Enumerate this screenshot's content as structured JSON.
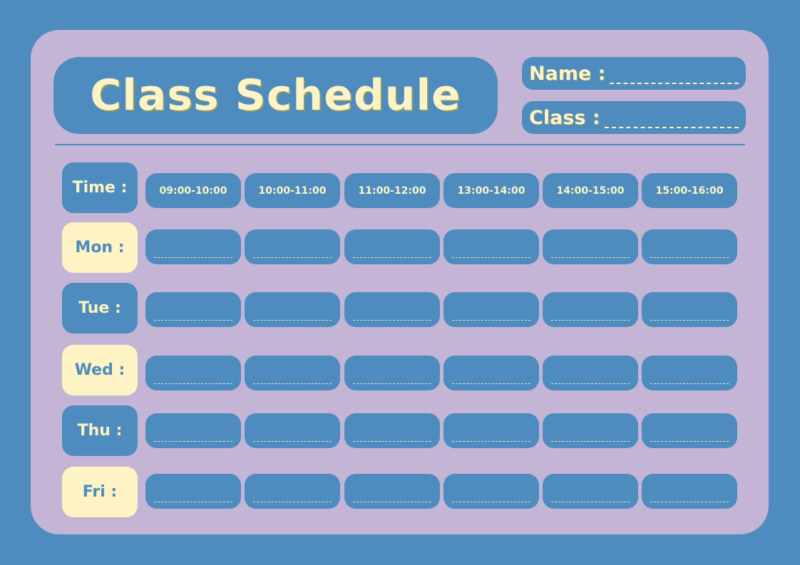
{
  "title": "Class Schedule",
  "fields": {
    "name_label": "Name :",
    "class_label": "Class :"
  },
  "time_label": "Time :",
  "time_slots": [
    "09:00-10:00",
    "10:00-11:00",
    "11:00-12:00",
    "13:00-14:00",
    "14:00-15:00",
    "15:00-16:00"
  ],
  "days": [
    {
      "label": "Mon :",
      "style": "yellow"
    },
    {
      "label": "Tue :",
      "style": "blue"
    },
    {
      "label": "Wed :",
      "style": "yellow"
    },
    {
      "label": "Thu :",
      "style": "blue"
    },
    {
      "label": "Fri :",
      "style": "yellow"
    }
  ],
  "colors": {
    "background": "#4e8bbf",
    "card": "#c4b4d6",
    "accent": "#fdf3c4"
  }
}
